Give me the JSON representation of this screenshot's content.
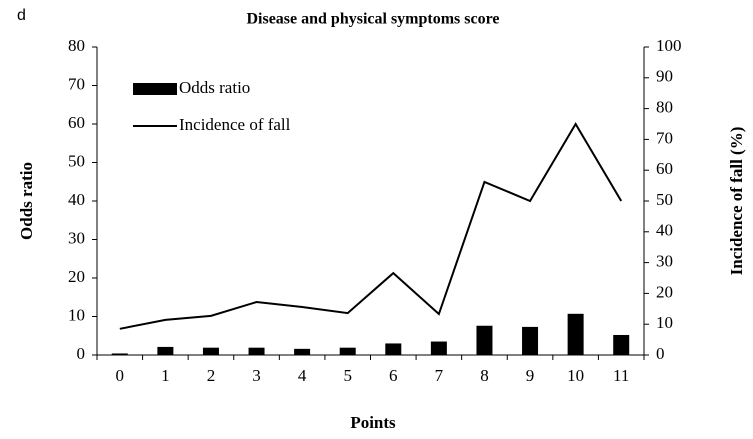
{
  "chart_data": {
    "type": "bar-line",
    "panel_label": "d",
    "title": "Disease and physical symptoms score",
    "x_label": "Points",
    "y_label": "Odds ratio",
    "y2_label": "Incidence of fall (%)",
    "categories": [
      "0",
      "1",
      "2",
      "3",
      "4",
      "5",
      "6",
      "7",
      "8",
      "9",
      "10",
      "11"
    ],
    "series": [
      {
        "name": "Odds ratio",
        "type": "bar",
        "color": "#000000",
        "axis": "y",
        "values": [
          0.4,
          2.1,
          1.9,
          1.9,
          1.6,
          1.9,
          3.0,
          3.5,
          7.6,
          7.3,
          10.7,
          5.2
        ]
      },
      {
        "name": "Incidence of fall",
        "type": "line",
        "color": "#000000",
        "axis": "y2",
        "values": [
          8.5,
          11.4,
          12.7,
          17.2,
          15.6,
          13.6,
          26.6,
          13.3,
          56.2,
          50,
          75,
          50
        ]
      }
    ],
    "ylim": [
      0,
      80
    ],
    "yticks": [
      0,
      10,
      20,
      30,
      40,
      50,
      60,
      70,
      80
    ],
    "y2lim": [
      0,
      100
    ],
    "y2ticks": [
      0,
      10,
      20,
      30,
      40,
      50,
      60,
      70,
      80,
      90,
      100
    ],
    "grid": false,
    "legend": "upper left"
  }
}
